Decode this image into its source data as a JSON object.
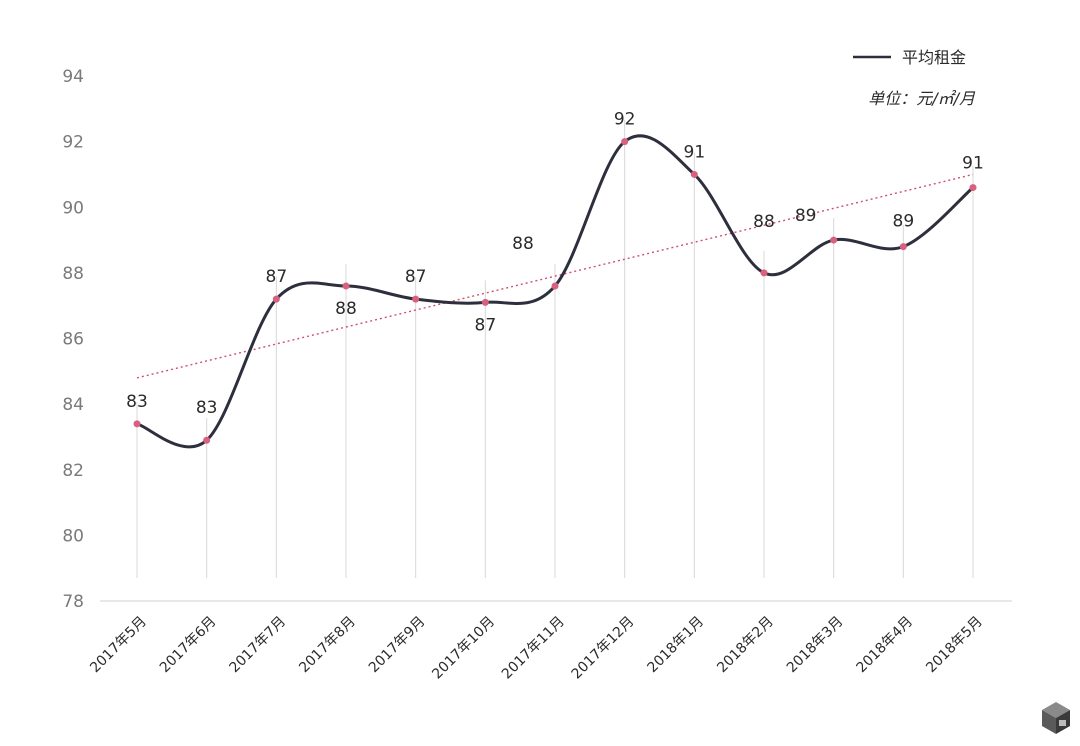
{
  "chart_data": {
    "type": "line",
    "categories": [
      "2017年5月",
      "2017年6月",
      "2017年7月",
      "2017年8月",
      "2017年9月",
      "2017年10月",
      "2017年11月",
      "2017年12月",
      "2018年1月",
      "2018年2月",
      "2018年3月",
      "2018年4月",
      "2018年5月"
    ],
    "series": [
      {
        "name": "平均租金",
        "values": [
          83.4,
          82.9,
          87.2,
          87.6,
          87.2,
          87.1,
          87.6,
          92.0,
          91.0,
          88.0,
          89.0,
          88.8,
          90.6
        ]
      }
    ],
    "data_labels": [
      "83",
      "83",
      "87",
      "88",
      "87",
      "87",
      "88",
      "92",
      "91",
      "88",
      "89",
      "89",
      "91"
    ],
    "trendline": {
      "start": 84.8,
      "end": 91.0,
      "style": "dotted",
      "color": "#d0506e"
    },
    "ylim": [
      78,
      94
    ],
    "yticks": [
      "78",
      "80",
      "82",
      "84",
      "86",
      "88",
      "90",
      "92",
      "94"
    ],
    "unit": "单位：元/㎡/月",
    "legend": {
      "label": "平均租金",
      "position": "top-right"
    },
    "colors": {
      "line": "#2e2f3e",
      "marker": "#d9607e",
      "trend": "#d0506e",
      "drop": "#d8d8d8",
      "axis": "#d0d0d0"
    }
  },
  "watermark_icon": "cube-logo-icon"
}
